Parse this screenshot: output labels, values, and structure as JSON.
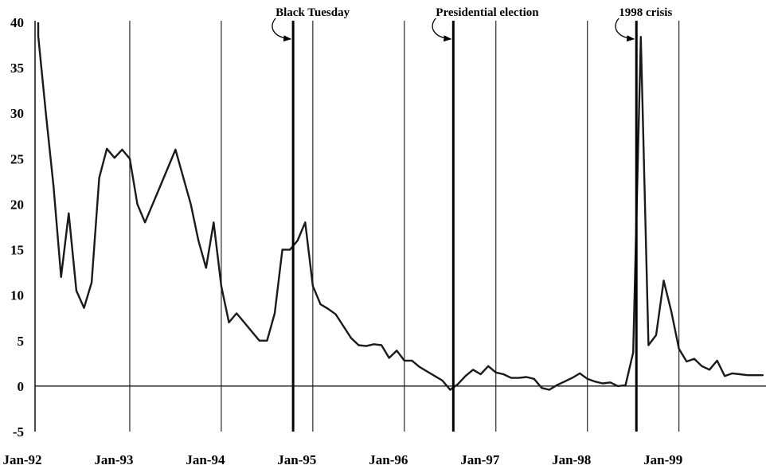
{
  "chart_data": {
    "type": "line",
    "title": "",
    "xlabel": "",
    "ylabel": "",
    "ylim": [
      -5,
      40
    ],
    "xlim": [
      "1992-01",
      "1999-12"
    ],
    "y_ticks": [
      "-5",
      "0",
      "5",
      "10",
      "15",
      "20",
      "25",
      "30",
      "35",
      "40"
    ],
    "y_tick_values": [
      -5,
      0,
      5,
      10,
      15,
      20,
      25,
      30,
      35,
      40
    ],
    "x_ticks": [
      "Jan-92",
      "Jan-93",
      "Jan-94",
      "Jan-95",
      "Jan-96",
      "Jan-97",
      "Jan-98",
      "Jan-99"
    ],
    "x_tick_values": [
      "1992-01",
      "1993-01",
      "1994-01",
      "1995-01",
      "1996-01",
      "1997-01",
      "1998-01",
      "1999-01"
    ],
    "grid": "vertical lines at each January; horizontal line at 0",
    "series": [
      {
        "x": [
          "1992-01",
          "1992-02",
          "1992-03",
          "1992-04",
          "1992-05",
          "1992-06",
          "1992-07",
          "1992-08",
          "1992-09",
          "1992-10",
          "1992-11",
          "1992-12",
          "1993-01",
          "1993-02",
          "1993-03",
          "1993-05",
          "1993-07",
          "1993-08",
          "1993-09",
          "1993-10",
          "1993-11",
          "1993-12",
          "1994-01",
          "1994-02",
          "1994-03",
          "1994-04",
          "1994-05",
          "1994-06",
          "1994-07",
          "1994-08",
          "1994-09",
          "1994-10",
          "1994-11",
          "1994-12",
          "1995-01",
          "1995-02",
          "1995-03",
          "1995-04",
          "1995-05",
          "1995-06",
          "1995-07",
          "1995-08",
          "1995-09",
          "1995-10",
          "1995-11",
          "1995-12",
          "1996-01",
          "1996-02",
          "1996-03",
          "1996-04",
          "1996-05",
          "1996-06",
          "1996-07",
          "1996-08",
          "1996-09",
          "1996-10",
          "1996-11",
          "1996-12",
          "1997-01",
          "1997-02",
          "1997-03",
          "1997-04",
          "1997-05",
          "1997-06",
          "1997-07",
          "1997-08",
          "1997-09",
          "1997-10",
          "1997-11",
          "1997-12",
          "1998-01",
          "1998-02",
          "1998-03",
          "1998-04",
          "1998-05",
          "1998-06",
          "1998-07",
          "1998-08",
          "1998-09",
          "1998-10",
          "1998-11",
          "1998-12",
          "1999-01",
          "1999-02",
          "1999-03",
          "1999-04",
          "1999-05",
          "1999-06",
          "1999-07",
          "1999-08",
          "1999-09",
          "1999-10",
          "1999-11",
          "1999-12"
        ],
        "values": [
          38.5,
          30.0,
          22.0,
          12.0,
          19.0,
          10.5,
          8.6,
          11.4,
          22.9,
          26.1,
          25.1,
          26.0,
          25.0,
          20.0,
          18.0,
          22.0,
          26.0,
          23.0,
          20.0,
          16.0,
          13.0,
          18.0,
          11.0,
          7.0,
          8.0,
          7.0,
          6.0,
          5.0,
          5.0,
          8.0,
          15.0,
          15.0,
          16.0,
          18.0,
          11.0,
          9.0,
          8.5,
          7.9,
          6.6,
          5.3,
          4.5,
          4.4,
          4.6,
          4.5,
          3.1,
          3.9,
          2.8,
          2.8,
          2.1,
          1.6,
          1.1,
          0.6,
          -0.4,
          0.2,
          1.1,
          1.8,
          1.3,
          2.2,
          1.5,
          1.3,
          0.9,
          0.9,
          1.0,
          0.8,
          -0.2,
          -0.4,
          0.1,
          0.5,
          0.9,
          1.4,
          0.8,
          0.5,
          0.3,
          0.4,
          0.0,
          0.1,
          3.7,
          38.4,
          4.5,
          5.6,
          11.6,
          8.2,
          4.1,
          2.7,
          3.0,
          2.2,
          1.8,
          2.8,
          1.1,
          1.4,
          1.3,
          1.2,
          1.2,
          1.2
        ]
      }
    ],
    "annotations": [
      {
        "label": "Black Tuesday",
        "x": "1994-10"
      },
      {
        "label": "Presidential election",
        "x": "1996-07"
      },
      {
        "label": "1998 crisis",
        "x": "1998-07"
      }
    ]
  }
}
